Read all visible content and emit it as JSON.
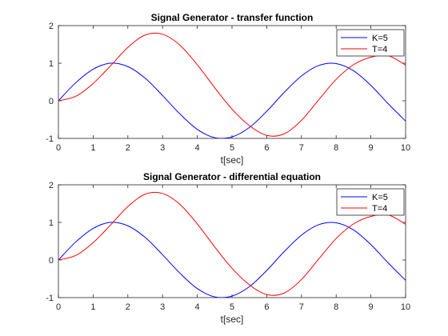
{
  "chart_data": [
    {
      "type": "line",
      "title": "Signal Generator - transfer function",
      "xlabel": "t[sec]",
      "ylabel": "",
      "xlim": [
        0,
        10
      ],
      "ylim": [
        -1,
        2
      ],
      "xticks": [
        0,
        1,
        2,
        3,
        4,
        5,
        6,
        7,
        8,
        9,
        10
      ],
      "yticks": [
        -1,
        0,
        1,
        2
      ],
      "grid": false,
      "legend_position": "top-right",
      "legend": [
        "K=5",
        "T=4"
      ],
      "x": [
        0,
        0.5,
        1,
        1.5,
        2,
        2.5,
        3,
        3.5,
        4,
        4.5,
        5,
        5.5,
        6,
        6.5,
        7,
        7.5,
        8,
        8.5,
        9,
        9.5,
        10
      ],
      "series": [
        {
          "color": "#0000ff",
          "values": [
            0,
            0.48,
            0.84,
            1.0,
            0.91,
            0.6,
            0.14,
            -0.35,
            -0.76,
            -0.98,
            -0.96,
            -0.71,
            -0.28,
            0.22,
            0.66,
            0.94,
            0.99,
            0.8,
            0.41,
            -0.08,
            -0.54
          ]
        },
        {
          "color": "#ff0000",
          "values": [
            0,
            0.12,
            0.46,
            0.93,
            1.42,
            1.75,
            1.77,
            1.48,
            0.96,
            0.35,
            -0.22,
            -0.66,
            -0.92,
            -0.88,
            -0.52,
            0.03,
            0.57,
            0.96,
            1.16,
            1.2,
            0.95
          ]
        }
      ]
    },
    {
      "type": "line",
      "title": "Signal Generator - differential equation",
      "xlabel": "t[sec]",
      "ylabel": "",
      "xlim": [
        0,
        10
      ],
      "ylim": [
        -1,
        2
      ],
      "xticks": [
        0,
        1,
        2,
        3,
        4,
        5,
        6,
        7,
        8,
        9,
        10
      ],
      "yticks": [
        -1,
        0,
        1,
        2
      ],
      "grid": false,
      "legend_position": "top-right",
      "legend": [
        "K=5",
        "T=4"
      ],
      "x": [
        0,
        0.5,
        1,
        1.5,
        2,
        2.5,
        3,
        3.5,
        4,
        4.5,
        5,
        5.5,
        6,
        6.5,
        7,
        7.5,
        8,
        8.5,
        9,
        9.5,
        10
      ],
      "series": [
        {
          "color": "#0000ff",
          "values": [
            0,
            0.48,
            0.84,
            1.0,
            0.91,
            0.6,
            0.14,
            -0.35,
            -0.76,
            -0.98,
            -0.96,
            -0.71,
            -0.28,
            0.22,
            0.66,
            0.94,
            0.99,
            0.8,
            0.41,
            -0.08,
            -0.54
          ]
        },
        {
          "color": "#ff0000",
          "values": [
            0,
            0.12,
            0.46,
            0.93,
            1.42,
            1.75,
            1.77,
            1.48,
            0.96,
            0.35,
            -0.22,
            -0.66,
            -0.92,
            -0.88,
            -0.52,
            0.03,
            0.57,
            0.96,
            1.16,
            1.2,
            0.95
          ]
        }
      ]
    }
  ]
}
